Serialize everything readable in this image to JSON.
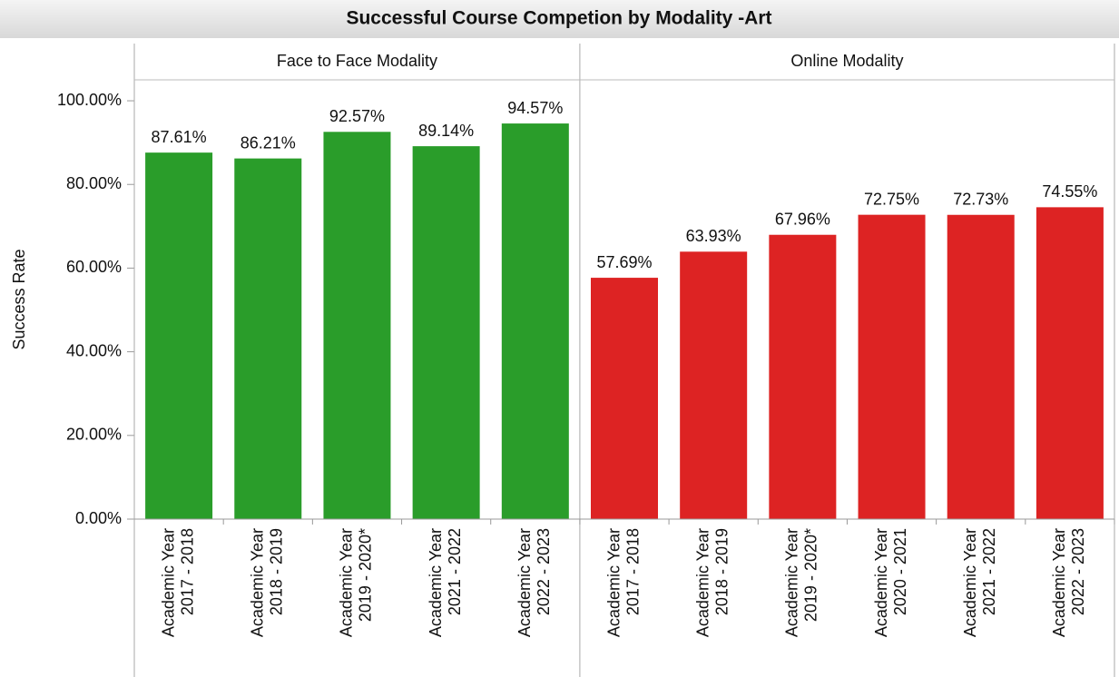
{
  "chart_data": {
    "type": "bar",
    "title": "Successful Course Competion by Modality -Art",
    "ylabel": "Success Rate",
    "ylim": [
      0,
      105
    ],
    "yticks": [
      {
        "value": 0,
        "label": "0.00%"
      },
      {
        "value": 20,
        "label": "20.00%"
      },
      {
        "value": 40,
        "label": "40.00%"
      },
      {
        "value": 60,
        "label": "60.00%"
      },
      {
        "value": 80,
        "label": "80.00%"
      },
      {
        "value": 100,
        "label": "100.00%"
      }
    ],
    "panels": [
      {
        "title": "Face to Face Modality",
        "color": "#2a9d2a",
        "categories": [
          [
            "Academic Year",
            "2017 - 2018"
          ],
          [
            "Academic Year",
            "2018 - 2019"
          ],
          [
            "Academic Year",
            "2019 - 2020*"
          ],
          [
            "Academic Year",
            "2021 - 2022"
          ],
          [
            "Academic Year",
            "2022 - 2023"
          ]
        ],
        "values": [
          87.61,
          86.21,
          92.57,
          89.14,
          94.57
        ],
        "value_labels": [
          "87.61%",
          "86.21%",
          "92.57%",
          "89.14%",
          "94.57%"
        ]
      },
      {
        "title": "Online Modality",
        "color": "#dd2323",
        "categories": [
          [
            "Academic Year",
            "2017 - 2018"
          ],
          [
            "Academic Year",
            "2018 - 2019"
          ],
          [
            "Academic Year",
            "2019 - 2020*"
          ],
          [
            "Academic Year",
            "2020 - 2021"
          ],
          [
            "Academic Year",
            "2021 - 2022"
          ],
          [
            "Academic Year",
            "2022 - 2023"
          ]
        ],
        "values": [
          57.69,
          63.93,
          67.96,
          72.75,
          72.73,
          74.55
        ],
        "value_labels": [
          "57.69%",
          "63.93%",
          "67.96%",
          "72.75%",
          "72.73%",
          "74.55%"
        ]
      }
    ]
  }
}
